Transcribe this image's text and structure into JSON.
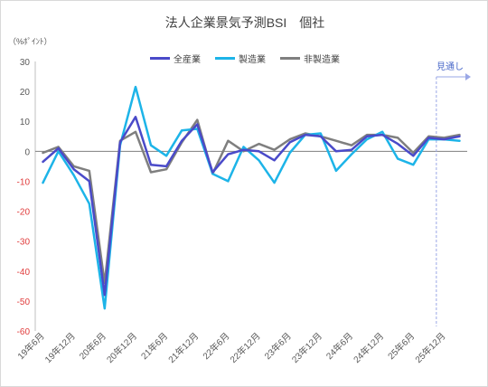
{
  "chart_data": {
    "type": "line",
    "title": "法人企業景気予測BSI　個社",
    "unit_label": "（%ﾎﾟｲﾝﾄ）",
    "ylim": [
      -60,
      30
    ],
    "y_ticks": [
      30,
      20,
      10,
      0,
      -10,
      -20,
      -30,
      -40,
      -50,
      -60
    ],
    "x_tick_labels": [
      "19年6月",
      "19年12月",
      "20年6月",
      "20年12月",
      "21年6月",
      "21年12月",
      "22年6月",
      "22年12月",
      "23年6月",
      "23年12月",
      "24年6月",
      "24年12月",
      "25年6月",
      "25年12月"
    ],
    "forecast_label": "見通し",
    "grid": false,
    "legend_position": "top-center",
    "series": [
      {
        "name": "全産業",
        "color": "#4a4ac9",
        "values": [
          -3.5,
          1.0,
          -6.0,
          -10.0,
          -48.0,
          3.0,
          11.5,
          -4.5,
          -5.0,
          3.5,
          9.0,
          -7.0,
          -1.0,
          0.5,
          0.0,
          -3.0,
          3.0,
          5.5,
          5.0,
          0.0,
          0.5,
          5.0,
          5.5,
          2.5,
          -1.5,
          4.5,
          4.0,
          5.0
        ]
      },
      {
        "name": "製造業",
        "color": "#1db4e8",
        "values": [
          -10.5,
          0.0,
          -8.0,
          -17.5,
          -52.5,
          2.0,
          21.5,
          2.0,
          -1.5,
          7.0,
          7.5,
          -7.5,
          -10.0,
          1.5,
          -3.0,
          -10.5,
          -0.5,
          5.5,
          6.0,
          -6.5,
          -1.0,
          4.0,
          6.5,
          -2.5,
          -4.5,
          4.0,
          4.0,
          3.5
        ]
      },
      {
        "name": "非製造業",
        "color": "#7f7f7f",
        "values": [
          -0.5,
          1.5,
          -5.0,
          -6.5,
          -44.0,
          3.5,
          6.5,
          -7.0,
          -6.0,
          3.0,
          10.5,
          -7.5,
          3.5,
          0.0,
          2.5,
          0.5,
          4.0,
          6.0,
          5.0,
          3.5,
          2.0,
          5.5,
          5.5,
          4.5,
          -0.5,
          5.0,
          4.5,
          5.5
        ]
      }
    ]
  }
}
